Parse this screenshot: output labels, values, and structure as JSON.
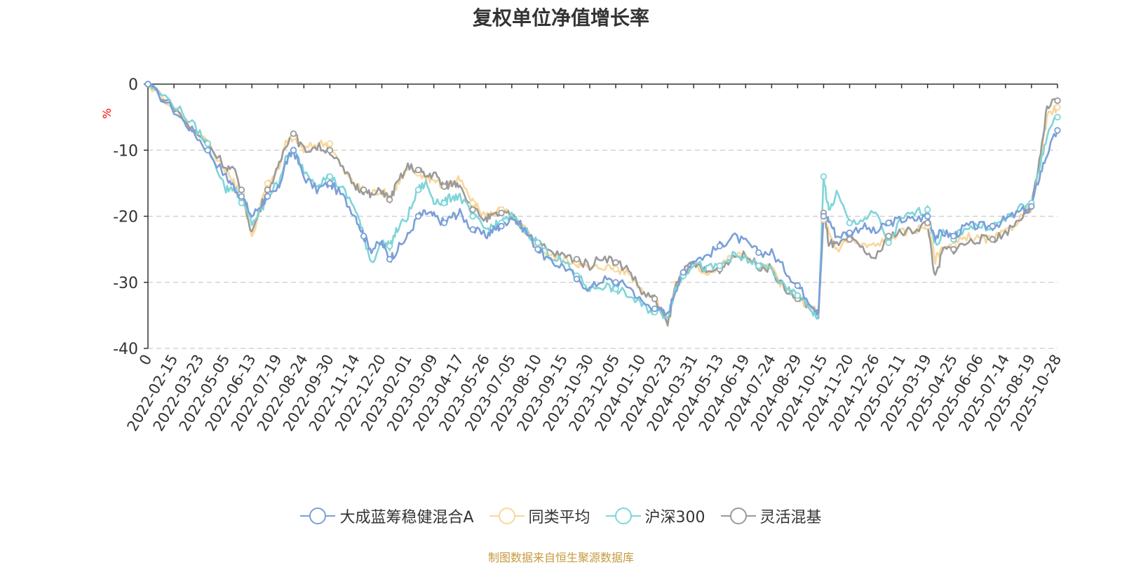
{
  "title": "复权单位净值增长率",
  "source_note": "制图数据来自恒生聚源数据库",
  "colors": {
    "fund": "#7b9fd8",
    "peer": "#f8d79d",
    "hs300": "#7fd5d9",
    "mixed": "#9a9a9a",
    "axis": "#333333",
    "grid": "#cccccc",
    "unit": "#ff0000",
    "source": "#c79a3c"
  },
  "chart_data": {
    "type": "line",
    "title": "复权单位净值增长率",
    "ylabel": "%",
    "ylim": [
      -40,
      0
    ],
    "yticks": [
      0,
      -10,
      -20,
      -30,
      -40
    ],
    "ytick_labels": [
      "0",
      "-10",
      "-20",
      "-30",
      "-40"
    ],
    "grid": true,
    "legend_position": "bottom",
    "x_labels": [
      "0",
      "2022-02-15",
      "2022-03-23",
      "2022-05-05",
      "2022-06-13",
      "2022-07-19",
      "2022-08-24",
      "2022-09-30",
      "2022-11-14",
      "2022-12-20",
      "2023-02-01",
      "2023-03-09",
      "2023-04-17",
      "2023-05-26",
      "2023-07-05",
      "2023-08-10",
      "2023-09-15",
      "2023-10-30",
      "2023-12-05",
      "2024-01-10",
      "2024-02-23",
      "2024-03-31",
      "2024-05-13",
      "2024-06-19",
      "2024-07-24",
      "2024-08-29",
      "2024-10-15",
      "2024-11-20",
      "2024-12-26",
      "2025-02-11",
      "2025-03-19",
      "2025-04-25",
      "2025-06-06",
      "2025-07-14",
      "2025-08-19",
      "2025-10-28"
    ],
    "x": [
      0,
      1,
      1.7,
      2.3,
      3,
      3.3,
      3.6,
      4,
      4.4,
      4.6,
      5,
      5.3,
      5.6,
      6,
      6.5,
      7,
      7.5,
      8,
      8.3,
      8.6,
      9,
      9.3,
      9.6,
      10,
      10.4,
      10.7,
      11,
      11.4,
      11.7,
      12,
      12.5,
      13,
      13.3,
      13.6,
      14,
      14.5,
      15,
      15.5,
      16,
      16.5,
      17,
      17.5,
      18,
      18.5,
      19,
      19.5,
      20,
      20.3,
      20.6,
      21,
      21.5,
      22,
      22.5,
      23,
      23.5,
      24,
      24.5,
      25,
      25.5,
      25.8,
      26,
      26.2,
      26.5,
      27,
      27.5,
      28,
      28.5,
      29,
      29.5,
      30,
      30.3,
      30.6,
      31,
      31.5,
      32,
      32.5,
      33,
      33.5,
      34,
      34.3,
      34.6,
      35
    ],
    "series": [
      {
        "name": "大成蓝筹稳健混合A",
        "color": "#7b9fd8",
        "values": [
          0,
          -4,
          -7,
          -10,
          -14,
          -15.5,
          -17,
          -20,
          -18,
          -17,
          -16,
          -12,
          -10,
          -14,
          -16,
          -15,
          -17,
          -20,
          -23,
          -25,
          -24,
          -26.5,
          -25,
          -23,
          -20,
          -19.5,
          -20,
          -21,
          -20,
          -19.5,
          -22,
          -23,
          -22,
          -21.5,
          -20,
          -22,
          -25,
          -27,
          -27.5,
          -29.5,
          -31,
          -29.5,
          -30,
          -30.5,
          -33,
          -34,
          -35,
          -31,
          -28.5,
          -26.5,
          -26,
          -24.5,
          -23,
          -24,
          -25.5,
          -25.5,
          -28,
          -30.5,
          -33,
          -34.5,
          -20,
          -20.5,
          -23,
          -22.5,
          -21.5,
          -22.5,
          -21,
          -20.5,
          -20.5,
          -20,
          -23,
          -22.5,
          -23,
          -21.5,
          -21.5,
          -21.5,
          -20.5,
          -19.5,
          -18.5,
          -14,
          -10.5,
          -7
        ]
      },
      {
        "name": "同类平均",
        "color": "#f8d79d",
        "values": [
          0,
          -3.5,
          -6.5,
          -9,
          -13,
          -15,
          -16.5,
          -23.5,
          -17,
          -15,
          -13,
          -9,
          -8,
          -10,
          -9,
          -9,
          -13,
          -15.5,
          -16,
          -16.5,
          -16,
          -17.5,
          -15,
          -13,
          -13.5,
          -14,
          -14.5,
          -15.5,
          -15,
          -14.5,
          -18,
          -20,
          -19.5,
          -19,
          -20,
          -22,
          -24.5,
          -26,
          -26.5,
          -27,
          -28,
          -27.5,
          -28,
          -28.5,
          -31,
          -32.5,
          -36,
          -30.5,
          -28.5,
          -27.5,
          -28.5,
          -27.5,
          -26,
          -26,
          -27.5,
          -28,
          -31,
          -32.5,
          -33.5,
          -35,
          -20.5,
          -22.5,
          -25,
          -23.5,
          -24.5,
          -24.5,
          -23,
          -22.5,
          -22,
          -21.5,
          -26.5,
          -24.5,
          -24.5,
          -23,
          -23.5,
          -23.5,
          -22.5,
          -20.5,
          -18.5,
          -13,
          -5,
          -3.5
        ]
      },
      {
        "name": "沪深300",
        "color": "#7fd5d9",
        "values": [
          0,
          -3,
          -6,
          -9,
          -16,
          -15.5,
          -18,
          -21,
          -19,
          -17,
          -15,
          -11.5,
          -10,
          -13,
          -15,
          -14,
          -16,
          -19,
          -23,
          -27,
          -24,
          -24.5,
          -22,
          -20,
          -16,
          -15,
          -17.5,
          -18,
          -17,
          -17,
          -20,
          -22,
          -21.5,
          -21,
          -20,
          -22,
          -24,
          -26,
          -27,
          -29,
          -31,
          -30.5,
          -31,
          -32,
          -33.5,
          -34.5,
          -35,
          -31,
          -29,
          -27,
          -28,
          -27.5,
          -26,
          -26.5,
          -27.5,
          -28,
          -31,
          -32,
          -34,
          -35.5,
          -14,
          -19.5,
          -16.5,
          -21,
          -20.5,
          -19.5,
          -24,
          -20.5,
          -19.5,
          -19,
          -24.5,
          -22.5,
          -23.5,
          -21.5,
          -21.5,
          -21.5,
          -20.5,
          -19,
          -18,
          -13,
          -7.5,
          -5
        ]
      },
      {
        "name": "灵活混基",
        "color": "#9a9a9a",
        "values": [
          0,
          -3.5,
          -7,
          -9,
          -12.5,
          -13,
          -16,
          -22.5,
          -18,
          -16,
          -13,
          -9,
          -7.5,
          -10,
          -9.5,
          -10,
          -13,
          -15.5,
          -16,
          -17,
          -16,
          -17.5,
          -15,
          -12.5,
          -13,
          -14,
          -13.5,
          -15.5,
          -15,
          -15,
          -19,
          -20.5,
          -20,
          -19.5,
          -20,
          -22,
          -24,
          -25.5,
          -26,
          -26.5,
          -27.5,
          -26,
          -27,
          -28,
          -31.5,
          -32.5,
          -36.5,
          -30.5,
          -28.5,
          -27,
          -28.5,
          -28,
          -26,
          -26,
          -27.5,
          -28,
          -31,
          -32.5,
          -33.5,
          -35,
          -19.5,
          -24,
          -24.5,
          -23.5,
          -25,
          -26.5,
          -23,
          -22.5,
          -22,
          -21,
          -29.5,
          -25,
          -25,
          -24,
          -23.5,
          -23.5,
          -22.5,
          -20.5,
          -18.5,
          -12,
          -3.5,
          -2.5
        ]
      }
    ]
  },
  "legend": [
    {
      "label": "大成蓝筹稳健混合A",
      "color": "#7b9fd8"
    },
    {
      "label": "同类平均",
      "color": "#f8d79d"
    },
    {
      "label": "沪深300",
      "color": "#7fd5d9"
    },
    {
      "label": "灵活混基",
      "color": "#9a9a9a"
    }
  ]
}
